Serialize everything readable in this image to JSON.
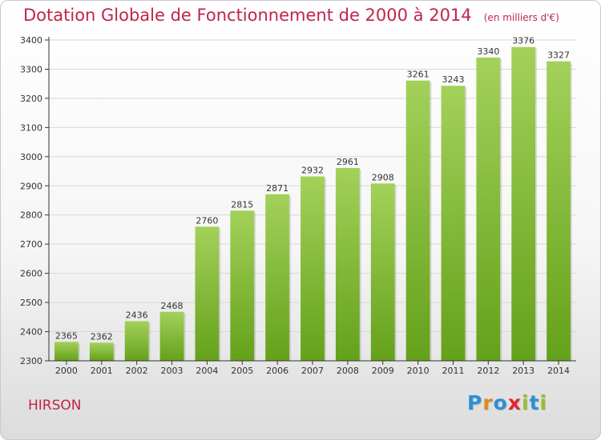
{
  "header": {
    "title": "Dotation Globale de Fonctionnement de 2000 à 2014",
    "subtitle": "(en milliers d'€)"
  },
  "place": "HIRSON",
  "logo": {
    "text": "Proxiti",
    "colors": [
      "#2f8fd6",
      "#e08a1e",
      "#2f8fd6",
      "#e0262f",
      "#9cbb2c",
      "#2f8fd6",
      "#9cbb2c"
    ]
  },
  "colors": {
    "accent": "#c0254a",
    "bar_top": "#a3d15a",
    "bar_bottom": "#64a11a",
    "grid": "#d9d9d9"
  },
  "chart_data": {
    "type": "bar",
    "title": "Dotation Globale de Fonctionnement de 2000 à 2014",
    "subtitle": "(en milliers d'€)",
    "categories": [
      "2000",
      "2001",
      "2002",
      "2003",
      "2004",
      "2005",
      "2006",
      "2007",
      "2008",
      "2009",
      "2010",
      "2011",
      "2012",
      "2013",
      "2014"
    ],
    "values": [
      2365,
      2362,
      2436,
      2468,
      2760,
      2815,
      2871,
      2932,
      2961,
      2908,
      3261,
      3243,
      3340,
      3376,
      3327
    ],
    "ylim": [
      2300,
      3400
    ],
    "yticks": [
      2300,
      2400,
      2500,
      2600,
      2700,
      2800,
      2900,
      3000,
      3100,
      3200,
      3300,
      3400
    ],
    "grid": true,
    "data_labels": true
  }
}
